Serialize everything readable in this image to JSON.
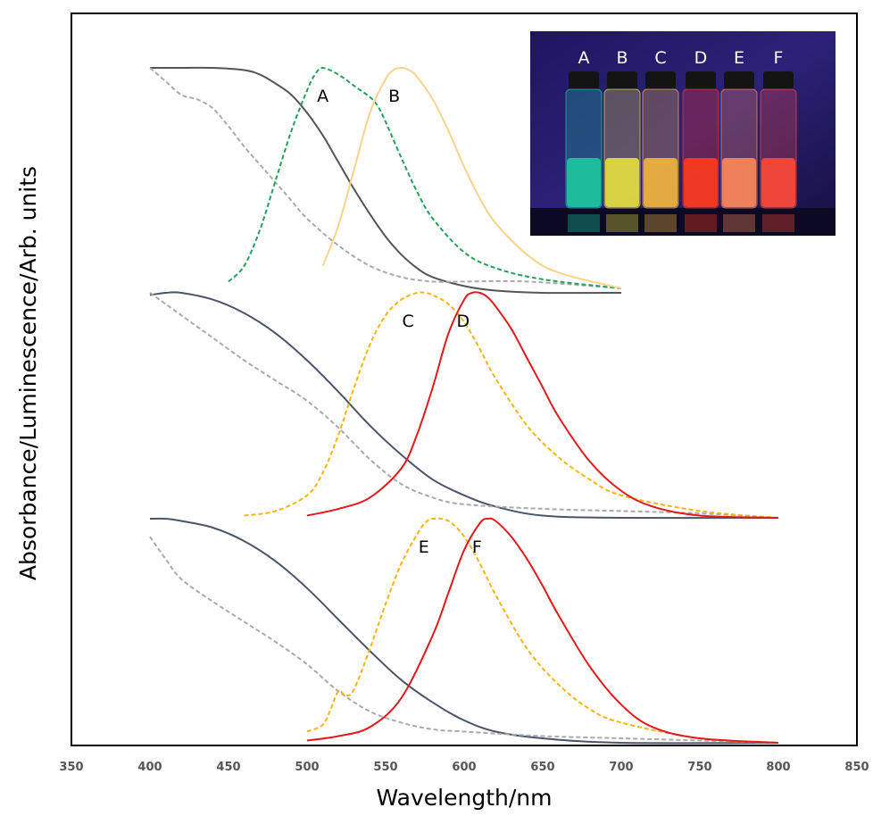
{
  "chart_data": {
    "type": "line",
    "title": "",
    "xlabel": "Wavelength/nm",
    "ylabel": "Absorbance/Luminescence/Arb. units",
    "xlim": [
      350,
      850
    ],
    "x_ticks": [
      350,
      400,
      450,
      500,
      550,
      600,
      650,
      700,
      750,
      800,
      850
    ],
    "y_ticks_shown": false,
    "grid": false,
    "panels": [
      {
        "group": "top",
        "offset": 2,
        "series": [
          {
            "name": "",
            "role": "absorbance",
            "color": "#555555",
            "style": "solid",
            "x": [
              400,
              420,
              440,
              460,
              470,
              480,
              490,
              500,
              510,
              520,
              530,
              540,
              550,
              560,
              570,
              580,
              600,
              620,
              650,
              700
            ],
            "y": [
              1.0,
              1.0,
              1.0,
              0.99,
              0.97,
              0.93,
              0.88,
              0.8,
              0.7,
              0.58,
              0.46,
              0.35,
              0.25,
              0.17,
              0.11,
              0.07,
              0.03,
              0.01,
              0.0,
              0.0
            ]
          },
          {
            "name": "",
            "role": "excitation",
            "color": "#aaaaaa",
            "style": "dashed",
            "x": [
              400,
              410,
              420,
              430,
              440,
              450,
              460,
              470,
              480,
              490,
              500,
              520,
              540,
              560,
              580,
              600,
              640,
              700
            ],
            "y": [
              1.0,
              0.94,
              0.88,
              0.86,
              0.82,
              0.74,
              0.65,
              0.57,
              0.49,
              0.41,
              0.33,
              0.21,
              0.12,
              0.07,
              0.05,
              0.05,
              0.05,
              0.02
            ]
          },
          {
            "name": "A",
            "role": "emission",
            "color": "#21a15a",
            "style": "dashed",
            "x": [
              450,
              460,
              470,
              480,
              490,
              500,
              505,
              510,
              520,
              530,
              540,
              545,
              550,
              560,
              570,
              580,
              600,
              620,
              650,
              700
            ],
            "y": [
              0.05,
              0.12,
              0.28,
              0.5,
              0.72,
              0.9,
              0.97,
              1.0,
              0.97,
              0.92,
              0.87,
              0.83,
              0.76,
              0.6,
              0.45,
              0.33,
              0.18,
              0.11,
              0.06,
              0.02
            ]
          },
          {
            "name": "B",
            "role": "emission",
            "color": "#f9d38c",
            "style": "solid",
            "x": [
              510,
              520,
              530,
              540,
              550,
              555,
              560,
              565,
              570,
              580,
              590,
              600,
              610,
              620,
              640,
              660,
              700
            ],
            "y": [
              0.12,
              0.3,
              0.55,
              0.8,
              0.95,
              0.99,
              1.0,
              0.99,
              0.96,
              0.86,
              0.72,
              0.56,
              0.42,
              0.31,
              0.17,
              0.09,
              0.02
            ]
          }
        ]
      },
      {
        "group": "middle",
        "offset": 1,
        "series": [
          {
            "name": "",
            "role": "absorbance",
            "color": "#4a5568",
            "style": "solid",
            "x": [
              400,
              410,
              420,
              440,
              460,
              480,
              500,
              520,
              540,
              560,
              580,
              600,
              620,
              650,
              700,
              800
            ],
            "y": [
              0.99,
              1.0,
              1.0,
              0.97,
              0.91,
              0.82,
              0.7,
              0.56,
              0.41,
              0.28,
              0.17,
              0.1,
              0.05,
              0.01,
              0.0,
              0.0
            ]
          },
          {
            "name": "",
            "role": "excitation",
            "color": "#aaaaaa",
            "style": "dashed",
            "x": [
              400,
              420,
              440,
              460,
              480,
              500,
              520,
              540,
              560,
              580,
              600,
              650,
              700,
              750,
              800
            ],
            "y": [
              1.0,
              0.9,
              0.8,
              0.7,
              0.61,
              0.52,
              0.4,
              0.26,
              0.15,
              0.09,
              0.06,
              0.04,
              0.03,
              0.02,
              0.0
            ]
          },
          {
            "name": "C",
            "role": "emission",
            "color": "#f5b417",
            "style": "dashed",
            "x": [
              460,
              480,
              500,
              510,
              520,
              530,
              540,
              550,
              560,
              570,
              575,
              580,
              590,
              600,
              610,
              620,
              640,
              660,
              680,
              700,
              750,
              800
            ],
            "y": [
              0.01,
              0.03,
              0.1,
              0.2,
              0.37,
              0.58,
              0.77,
              0.9,
              0.97,
              1.0,
              1.0,
              0.99,
              0.95,
              0.87,
              0.75,
              0.62,
              0.41,
              0.27,
              0.17,
              0.1,
              0.03,
              0.0
            ]
          },
          {
            "name": "D",
            "role": "emission",
            "color": "#e31a1a",
            "style": "solid",
            "x": [
              500,
              520,
              540,
              560,
              570,
              580,
              590,
              600,
              605,
              610,
              615,
              620,
              630,
              640,
              650,
              660,
              680,
              700,
              720,
              750,
              800
            ],
            "y": [
              0.01,
              0.04,
              0.09,
              0.22,
              0.37,
              0.58,
              0.82,
              0.97,
              1.0,
              1.0,
              0.98,
              0.94,
              0.84,
              0.71,
              0.58,
              0.45,
              0.25,
              0.12,
              0.05,
              0.01,
              0.0
            ]
          }
        ]
      },
      {
        "group": "bottom",
        "offset": 0,
        "series": [
          {
            "name": "",
            "role": "absorbance",
            "color": "#4a5568",
            "style": "solid",
            "x": [
              400,
              410,
              420,
              440,
              460,
              480,
              500,
              520,
              540,
              560,
              580,
              600,
              620,
              650,
              700,
              800
            ],
            "y": [
              1.0,
              1.0,
              0.99,
              0.96,
              0.9,
              0.81,
              0.69,
              0.55,
              0.41,
              0.28,
              0.18,
              0.1,
              0.05,
              0.02,
              0.0,
              0.0
            ]
          },
          {
            "name": "",
            "role": "excitation",
            "color": "#aaaaaa",
            "style": "dashed",
            "x": [
              400,
              410,
              420,
              440,
              460,
              480,
              500,
              520,
              540,
              560,
              580,
              600,
              650,
              700,
              800
            ],
            "y": [
              0.92,
              0.82,
              0.73,
              0.63,
              0.54,
              0.45,
              0.35,
              0.23,
              0.14,
              0.09,
              0.06,
              0.05,
              0.03,
              0.02,
              0.0
            ]
          },
          {
            "name": "E",
            "role": "emission",
            "color": "#f5b417",
            "style": "dashed",
            "x": [
              500,
              510,
              515,
              520,
              525,
              530,
              540,
              550,
              560,
              570,
              575,
              580,
              590,
              600,
              610,
              620,
              640,
              660,
              680,
              700,
              750,
              800
            ],
            "y": [
              0.05,
              0.08,
              0.15,
              0.23,
              0.21,
              0.24,
              0.42,
              0.62,
              0.8,
              0.93,
              0.98,
              1.0,
              0.99,
              0.92,
              0.8,
              0.66,
              0.42,
              0.26,
              0.15,
              0.09,
              0.02,
              0.0
            ]
          },
          {
            "name": "F",
            "role": "emission",
            "color": "#e31a1a",
            "style": "solid",
            "x": [
              500,
              520,
              540,
              560,
              580,
              590,
              600,
              610,
              615,
              620,
              630,
              640,
              650,
              660,
              680,
              700,
              720,
              750,
              800
            ],
            "y": [
              0.01,
              0.03,
              0.07,
              0.2,
              0.48,
              0.67,
              0.86,
              0.98,
              1.0,
              0.99,
              0.92,
              0.82,
              0.7,
              0.57,
              0.34,
              0.17,
              0.07,
              0.02,
              0.0
            ]
          }
        ]
      }
    ]
  },
  "inset": {
    "photo": "vials-under-uv-light",
    "vial_labels": [
      "A",
      "B",
      "C",
      "D",
      "E",
      "F"
    ],
    "vial_glow_colors": [
      "#1ec8a0",
      "#e6e040",
      "#f2b63c",
      "#ff3b1e",
      "#ff8a5a",
      "#ff4a3a"
    ],
    "background_color": "#2a1e6e"
  }
}
